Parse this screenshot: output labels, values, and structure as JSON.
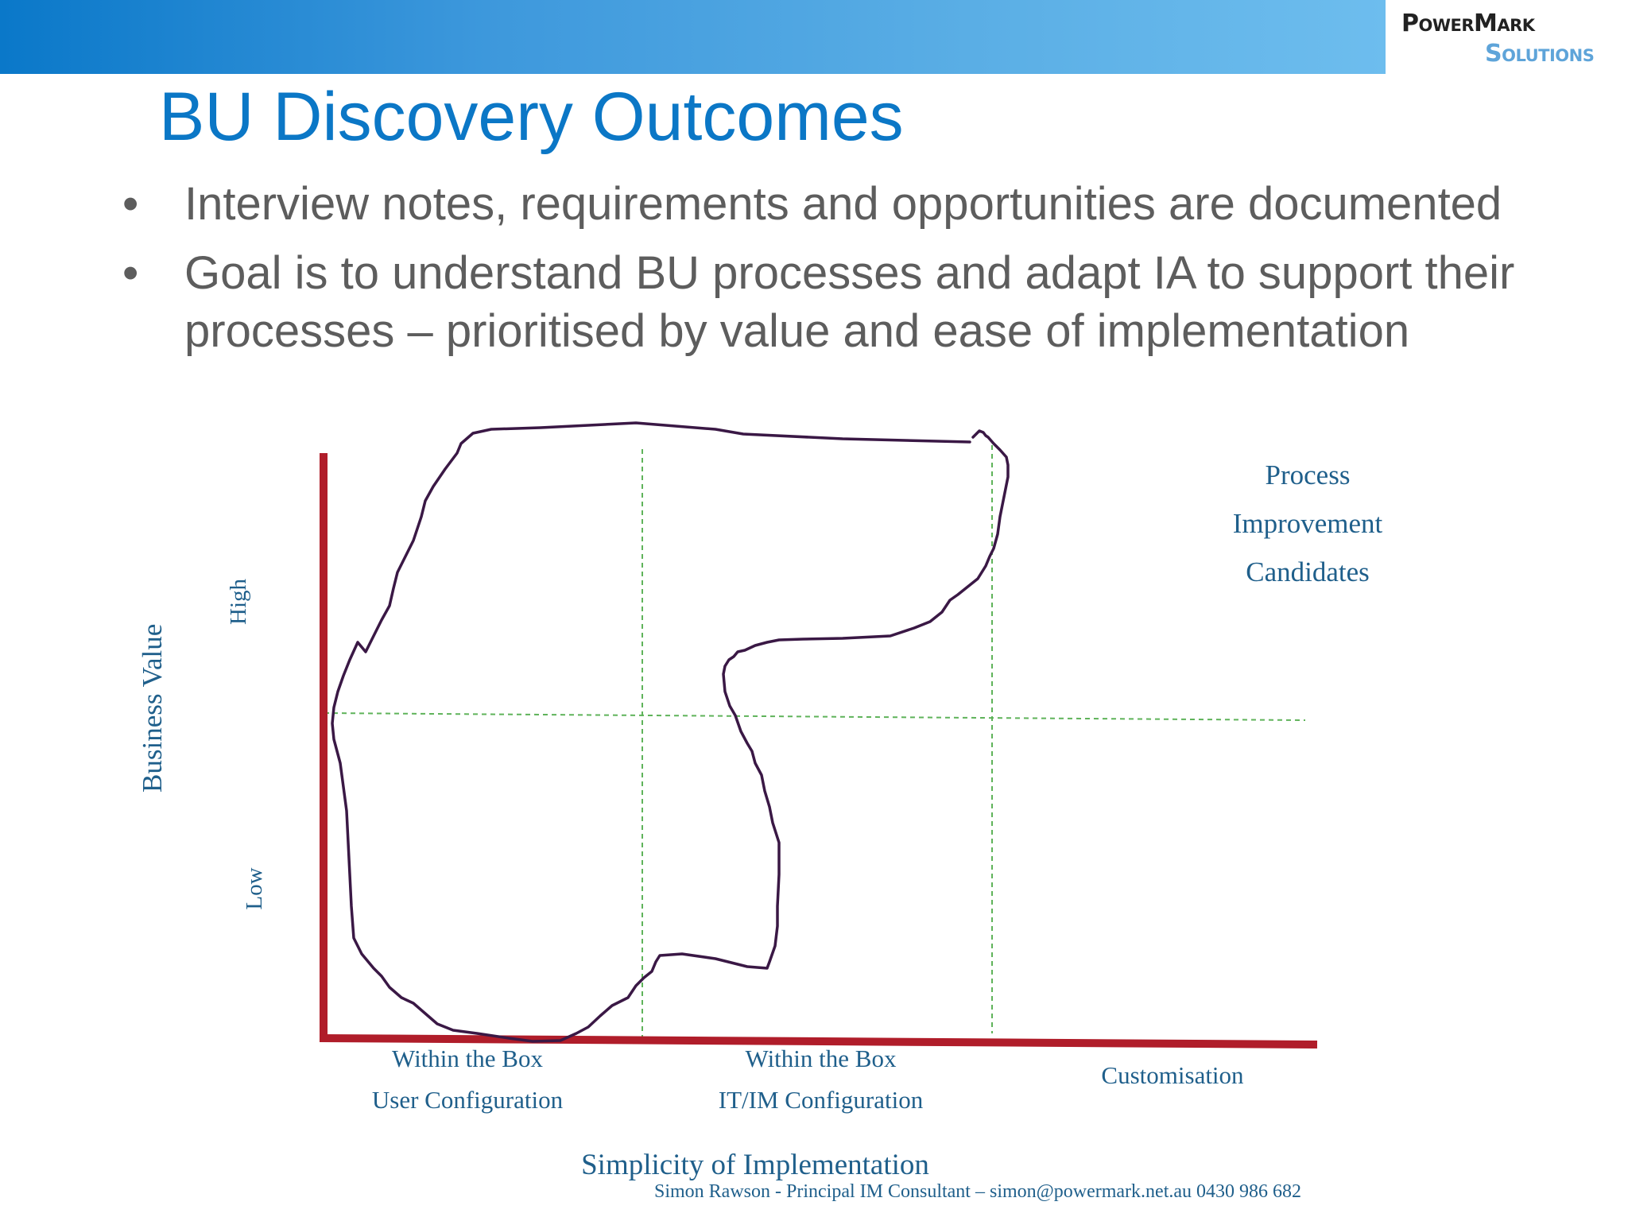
{
  "logo": {
    "line1": "PowerMark",
    "line2": "Solutions"
  },
  "title": "BU Discovery Outcomes",
  "bullets": [
    {
      "marker": "•",
      "text": "Interview notes, requirements and opportunities are documented"
    },
    {
      "marker": "•",
      "text": "Goal is to understand BU processes and adapt IA to support their processes – prioritised by value and ease of implementation"
    }
  ],
  "diagram": {
    "y_axis_title": "Business Value",
    "y_high": "High",
    "y_low": "Low",
    "x_axis_title": "Simplicity of Implementation",
    "x_col1_line1": "Within the Box",
    "x_col1_line2": "User Configuration",
    "x_col2_line1": "Within the Box",
    "x_col2_line2": "IT/IM Configuration",
    "x_col3": "Customisation",
    "region_line1": "Process",
    "region_line2": "Improvement",
    "region_line3": "Candidates"
  },
  "footer": "Simon Rawson - Principal IM Consultant – simon@powermark.net.au 0430 986 682",
  "colors": {
    "title": "#0b77c6",
    "axis": "#b01d2a",
    "grid": "#5fb35a",
    "freehand": "#3a1845",
    "label": "#1f5f8b"
  }
}
